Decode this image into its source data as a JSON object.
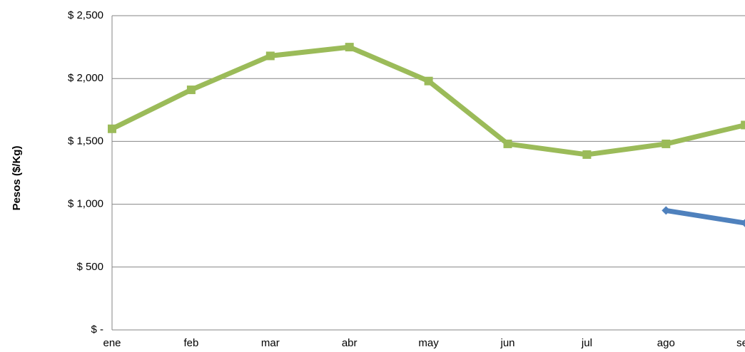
{
  "chart_data": {
    "type": "line",
    "y_label": "Pesos ($/Kg)",
    "categories": [
      "ene",
      "feb",
      "mar",
      "abr",
      "may",
      "jun",
      "jul",
      "ago",
      "sep"
    ],
    "series": [
      {
        "color": "#9bbb59",
        "values": [
          1600,
          1910,
          2180,
          2250,
          1980,
          1480,
          1395,
          1480,
          1630
        ]
      },
      {
        "color": "#4f81bd",
        "values": [
          null,
          null,
          null,
          null,
          null,
          null,
          null,
          950,
          850
        ]
      }
    ],
    "ylim": [
      0,
      2500
    ],
    "yticks": [
      {
        "value": 0,
        "label": "$ -"
      },
      {
        "value": 500,
        "label": "$ 500"
      },
      {
        "value": 1000,
        "label": "$ 1,000"
      },
      {
        "value": 1500,
        "label": "$ 1,500"
      },
      {
        "value": 2000,
        "label": "$ 2,000"
      },
      {
        "value": 2500,
        "label": "$ 2,500"
      }
    ],
    "grid": true
  }
}
